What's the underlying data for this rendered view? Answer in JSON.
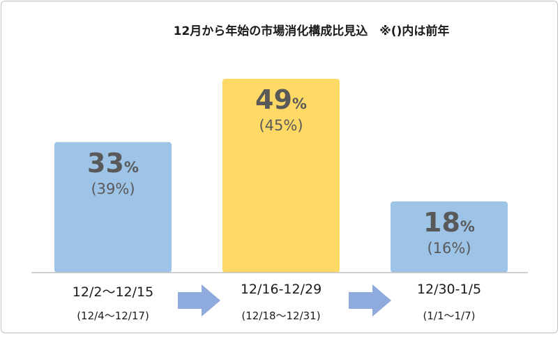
{
  "title": "12月から年始の市場消化構成比見込　※()内は前年",
  "chart_data": {
    "type": "bar",
    "categories": [
      "12/2～12/15",
      "12/16-12/29",
      "12/30-1/5"
    ],
    "category_sublabels": [
      "(12/4～12/17)",
      "(12/18～12/31)",
      "(1/1～1/7)"
    ],
    "values": [
      33,
      49,
      18
    ],
    "previous_year_values": [
      39,
      45,
      16
    ],
    "value_labels": [
      "33",
      "49",
      "18"
    ],
    "value_unit": "%",
    "previous_labels": [
      "(39%)",
      "(45%)",
      "(16%)"
    ],
    "colors": [
      "#9dc3e6",
      "#ffd966",
      "#9dc3e6"
    ],
    "ylim": [
      0,
      49
    ],
    "legend": "none",
    "grid": false
  },
  "arrow_color": "#8faadc"
}
